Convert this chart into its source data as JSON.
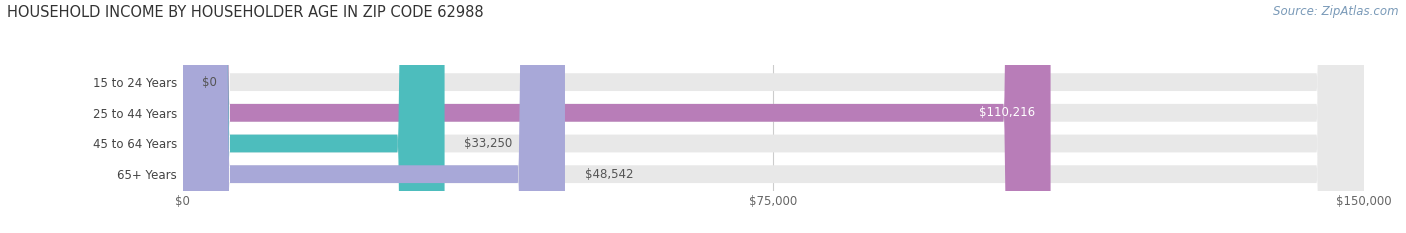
{
  "title": "HOUSEHOLD INCOME BY HOUSEHOLDER AGE IN ZIP CODE 62988",
  "source": "Source: ZipAtlas.com",
  "categories": [
    "15 to 24 Years",
    "25 to 44 Years",
    "45 to 64 Years",
    "65+ Years"
  ],
  "values": [
    0,
    110216,
    33250,
    48542
  ],
  "bar_colors": [
    "#a8c8e8",
    "#b87db8",
    "#4dbdbd",
    "#a8a8d8"
  ],
  "bar_bg_color": "#e8e8e8",
  "value_labels": [
    "$0",
    "$110,216",
    "$33,250",
    "$48,542"
  ],
  "label_inside": [
    false,
    true,
    false,
    false
  ],
  "xlim": [
    0,
    150000
  ],
  "xtick_values": [
    0,
    75000,
    150000
  ],
  "xtick_labels": [
    "$0",
    "$75,000",
    "$150,000"
  ],
  "background_color": "#ffffff",
  "title_fontsize": 10.5,
  "source_fontsize": 8.5,
  "bar_height": 0.58,
  "bar_label_fontsize": 8.5,
  "category_label_fontsize": 8.5
}
